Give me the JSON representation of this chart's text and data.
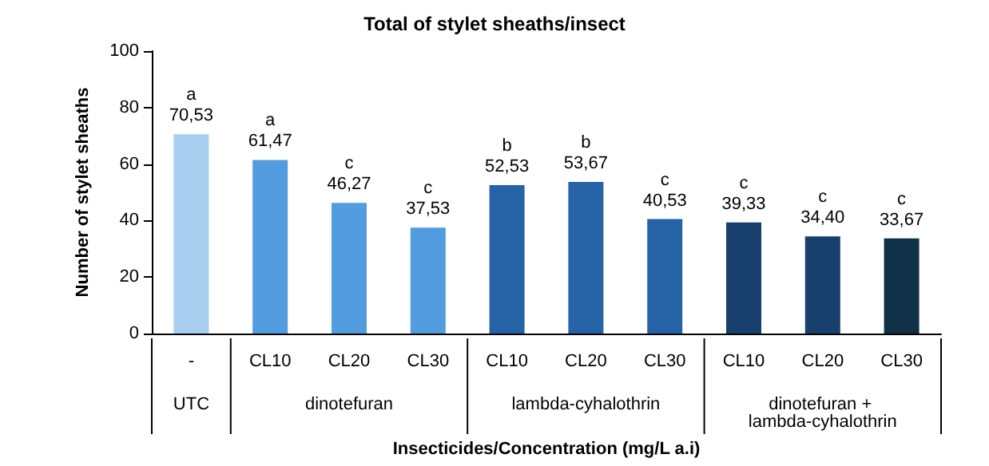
{
  "chart_data": {
    "type": "bar",
    "title": "Total of stylet sheaths/insect",
    "xlabel": "Insecticides/Concentration (mg/L a.i)",
    "ylabel": "Number of stylet sheaths",
    "categories": [
      "-",
      "CL10",
      "CL20",
      "CL30",
      "CL10",
      "CL20",
      "CL30",
      "CL10",
      "CL20",
      "CL30"
    ],
    "values": [
      70.53,
      61.47,
      46.27,
      37.53,
      52.53,
      53.67,
      40.53,
      39.33,
      34.4,
      33.67
    ],
    "colors": [
      "#a8cff0",
      "#549ce0",
      "#549ce0",
      "#549ce0",
      "#2563a6",
      "#2563a6",
      "#2563a6",
      "#183f6d",
      "#183f6d",
      "#0f3047"
    ],
    "value_labels": [
      "a\n70,53",
      "a\n61,47",
      "c\n46,27",
      "c\n37,53",
      "b\n52,53",
      "b\n53,67",
      "c\n40,53",
      "c\n39,33",
      "c\n34,40",
      "c\n33,67"
    ],
    "annotations": [
      "UTC",
      "dinotefuran",
      "lambda-cyhalothrin",
      "dinotefuran + lambda-cyhalothrin"
    ],
    "ylim": [
      0,
      100
    ],
    "yticks": [
      0,
      20,
      40,
      60,
      80,
      100
    ]
  }
}
